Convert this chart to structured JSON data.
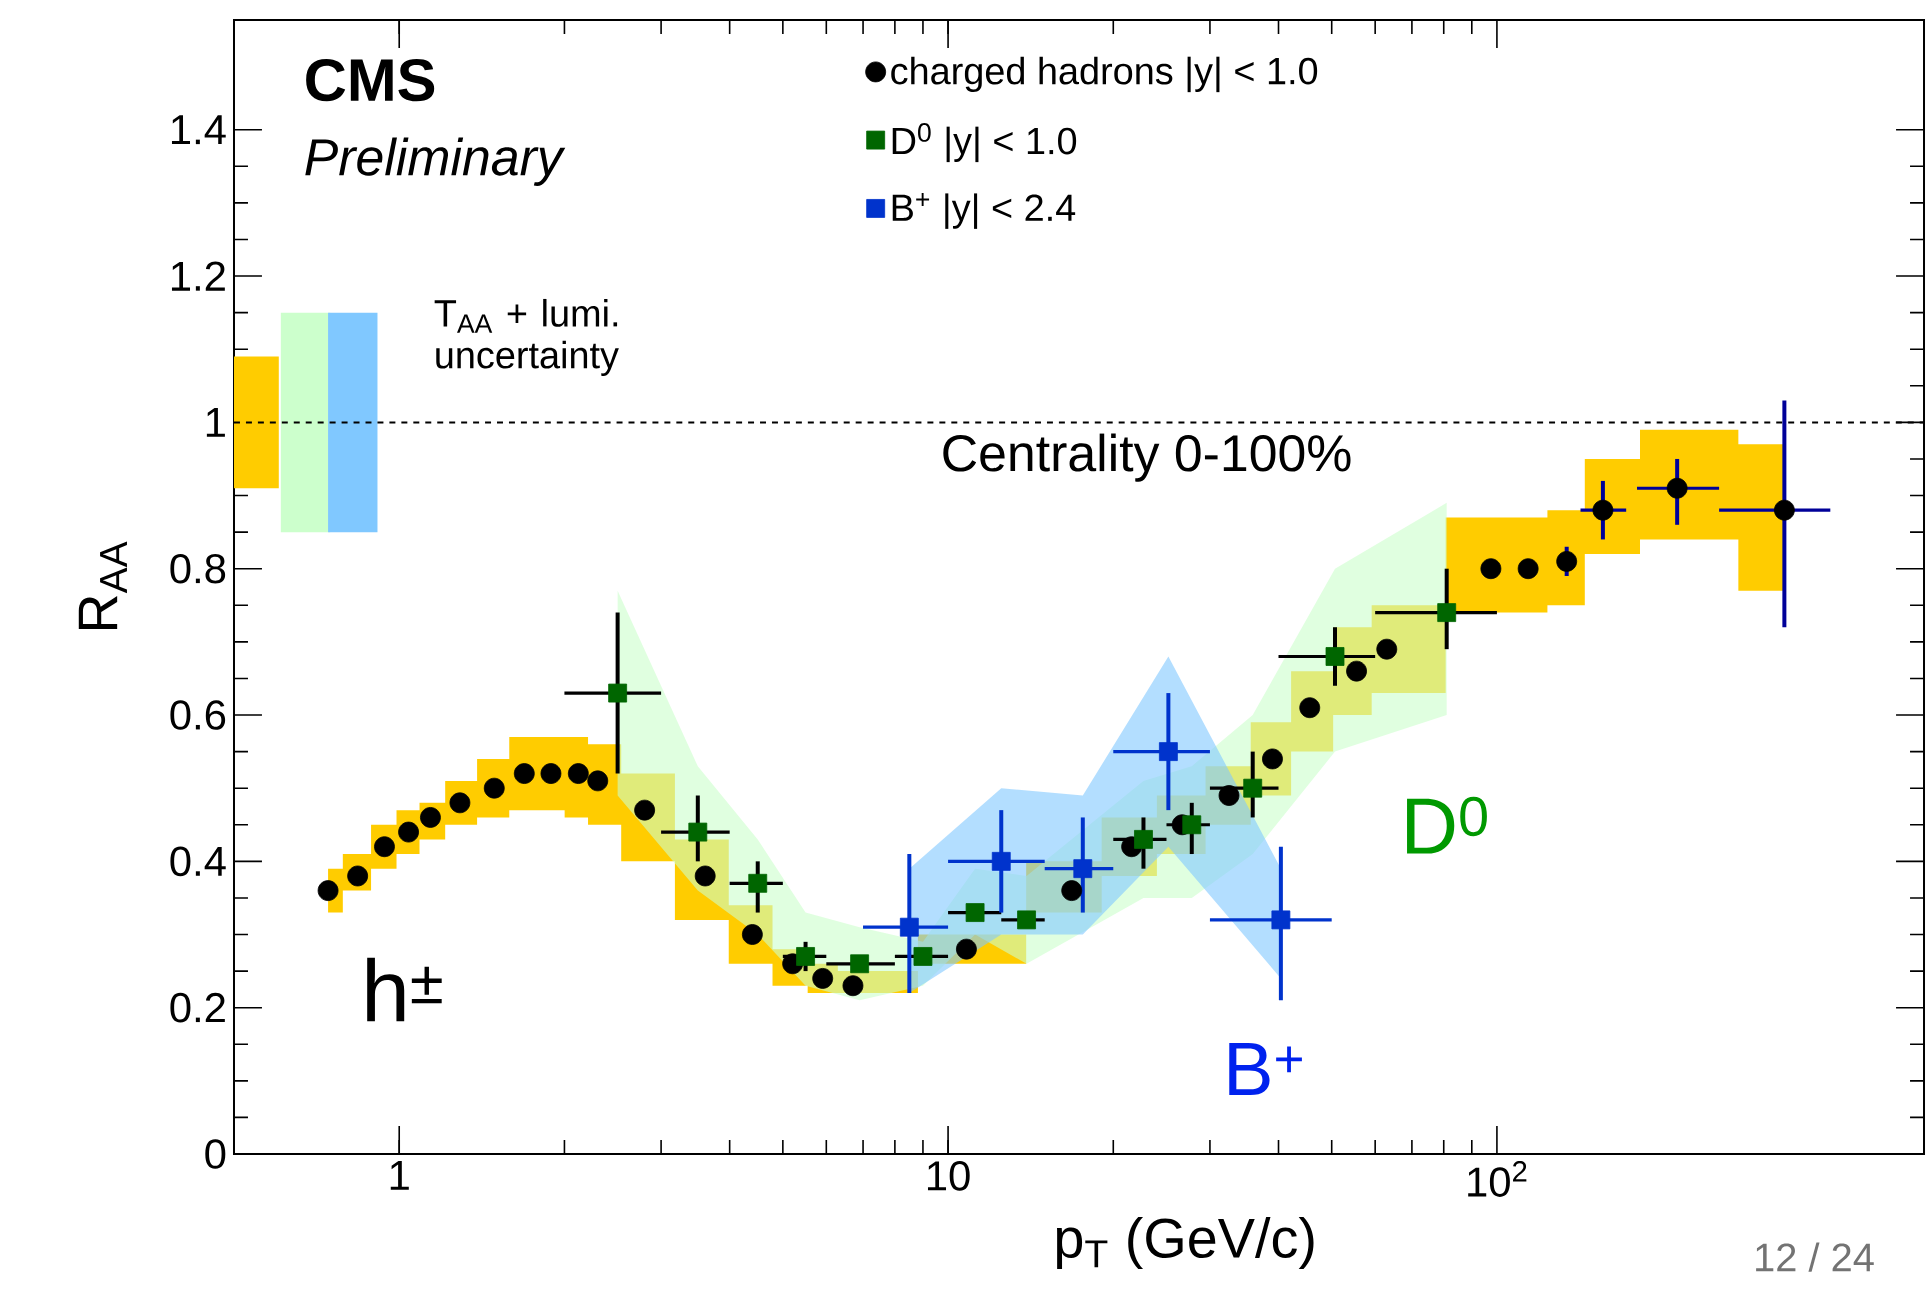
{
  "chart_data": {
    "type": "scatter",
    "xlabel": "p$_{T}$ (GeV/c)",
    "ylabel": "R$_{AA}$",
    "log": "x",
    "xlim": [
      0.5,
      600
    ],
    "ylim": [
      0,
      1.55
    ],
    "xticks": [
      1,
      10,
      {
        "value": 100,
        "label": "10$^{2}$"
      }
    ],
    "yticks": [
      0,
      0.2,
      0.4,
      0.6,
      0.8,
      1,
      1.2,
      1.4
    ],
    "legend": "top right",
    "grid": false,
    "series": [
      {
        "name": "charged hadrons |y| < 1.0",
        "color": "#000000",
        "marker": "circle",
        "x": [
          0.742,
          0.84,
          0.94,
          1.04,
          1.14,
          1.29,
          1.49,
          1.69,
          1.89,
          2.12,
          2.3,
          2.8,
          3.61,
          4.4,
          5.21,
          5.91,
          6.71,
          10.8,
          16.8,
          21.6,
          26.7,
          32.5,
          39,
          45.6,
          55.5,
          63,
          97.5,
          114,
          134,
          156,
          213,
          334
        ],
        "values": [
          0.36,
          0.38,
          0.42,
          0.44,
          0.46,
          0.48,
          0.5,
          0.52,
          0.52,
          0.52,
          0.51,
          0.47,
          0.38,
          0.3,
          0.26,
          0.24,
          0.23,
          0.28,
          0.36,
          0.42,
          0.45,
          0.49,
          0.54,
          0.61,
          0.66,
          0.69,
          0.8,
          0.8,
          0.81,
          0.88,
          0.91,
          0.88
        ],
        "lower": [
          0.33,
          0.36,
          0.39,
          0.41,
          0.43,
          0.45,
          0.46,
          0.47,
          0.47,
          0.46,
          0.45,
          0.4,
          0.32,
          0.26,
          0.23,
          0.22,
          0.22,
          0.26,
          0.33,
          0.38,
          0.41,
          0.45,
          0.49,
          0.55,
          0.6,
          0.63,
          0.74,
          0.74,
          0.75,
          0.82,
          0.84,
          0.77
        ],
        "upper": [
          0.39,
          0.41,
          0.45,
          0.47,
          0.48,
          0.51,
          0.54,
          0.57,
          0.57,
          0.57,
          0.56,
          0.52,
          0.43,
          0.34,
          0.28,
          0.26,
          0.25,
          0.3,
          0.4,
          0.46,
          0.49,
          0.53,
          0.59,
          0.66,
          0.72,
          0.75,
          0.87,
          0.87,
          0.88,
          0.95,
          0.99,
          0.97
        ],
        "errors": [
          null,
          null,
          null,
          null,
          null,
          null,
          null,
          null,
          null,
          null,
          null,
          null,
          null,
          null,
          null,
          null,
          null,
          null,
          null,
          null,
          null,
          null,
          null,
          null,
          null,
          null,
          null,
          null,
          [
            0.79,
            0.83
          ],
          [
            0.84,
            0.92
          ],
          [
            0.86,
            0.95
          ],
          [
            0.72,
            1.03
          ]
        ],
        "xerrors": [
          null,
          null,
          null,
          null,
          null,
          null,
          null,
          null,
          null,
          null,
          null,
          null,
          null,
          null,
          null,
          null,
          null,
          null,
          null,
          null,
          null,
          null,
          null,
          null,
          null,
          null,
          null,
          null,
          null,
          [
            142,
            172
          ],
          [
            180,
            254
          ],
          [
            254,
            405
          ]
        ]
      },
      {
        "name": "D$^{0}$ |y| < 1.0",
        "color": "#006600",
        "marker": "square",
        "x": [
          2.5,
          3.5,
          4.5,
          5.5,
          6.9,
          9.0,
          11.2,
          13.9,
          22.7,
          27.8,
          35.9,
          50.7,
          81
        ],
        "values": [
          0.63,
          0.44,
          0.37,
          0.27,
          0.26,
          0.27,
          0.33,
          0.32,
          0.43,
          0.45,
          0.5,
          0.68,
          0.74
        ],
        "lower": [
          0.49,
          0.36,
          0.3,
          0.23,
          0.21,
          0.23,
          0.3,
          0.26,
          0.35,
          0.35,
          0.41,
          0.55,
          0.6
        ],
        "upper": [
          0.77,
          0.53,
          0.43,
          0.33,
          0.31,
          0.29,
          0.39,
          0.38,
          0.51,
          0.53,
          0.6,
          0.8,
          0.89
        ],
        "errors": [
          [
            0.52,
            0.74
          ],
          [
            0.4,
            0.49
          ],
          [
            0.33,
            0.4
          ],
          [
            0.25,
            0.29
          ],
          null,
          null,
          null,
          null,
          [
            0.39,
            0.46
          ],
          [
            0.41,
            0.48
          ],
          [
            0.46,
            0.55
          ],
          [
            0.64,
            0.72
          ],
          [
            0.69,
            0.8
          ]
        ],
        "xerrors": [
          [
            2,
            3
          ],
          [
            3,
            4
          ],
          [
            4,
            5
          ],
          [
            5,
            6
          ],
          [
            6,
            8
          ],
          [
            8,
            10
          ],
          [
            10,
            12.5
          ],
          [
            12.5,
            15
          ],
          [
            20,
            25
          ],
          [
            25,
            30
          ],
          [
            30,
            40
          ],
          [
            40,
            60
          ],
          [
            60,
            100
          ]
        ]
      },
      {
        "name": "B$^{+}$ |y| < 2.4",
        "color": "#0033cc",
        "marker": "square",
        "x": [
          8.5,
          12.5,
          17.6,
          25.2,
          40.4
        ],
        "values": [
          0.31,
          0.4,
          0.39,
          0.55,
          0.32
        ],
        "lower": [
          0.22,
          0.3,
          0.3,
          0.42,
          0.24
        ],
        "upper": [
          0.39,
          0.5,
          0.49,
          0.68,
          0.39
        ],
        "errors": [
          [
            0.22,
            0.41
          ],
          [
            0.33,
            0.47
          ],
          [
            0.33,
            0.46
          ],
          [
            0.47,
            0.63
          ],
          [
            0.21,
            0.42
          ]
        ],
        "xerrors": [
          [
            7,
            10
          ],
          [
            10,
            15
          ],
          [
            15,
            20
          ],
          [
            20,
            30
          ],
          [
            30,
            50
          ]
        ]
      },
      {
        "type": "bar",
        "color": "#ffcc00",
        "x": [
          0.544
        ],
        "base": [
          0.91
        ],
        "values": [
          0.18
        ]
      },
      {
        "type": "bar",
        "color": "#ccffcc",
        "x": [
          0.675
        ],
        "base": [
          0.85
        ],
        "values": [
          0.3
        ]
      },
      {
        "type": "bar",
        "color": "#80c8ff",
        "x": [
          0.823
        ],
        "base": [
          0.85
        ],
        "values": [
          0.3
        ]
      }
    ],
    "ref_lines": [
      {
        "axis": "y",
        "value": 1,
        "line_style": "dashed",
        "color": "#000000"
      }
    ],
    "annotations": [
      "**CMS**",
      "*Preliminary*",
      "T$_{AA}$ + lumi. uncertainty",
      "Centrality 0-100%",
      "h$^{±}$",
      "D$^{0}$",
      "B$^{+}$",
      "12 / 24"
    ]
  }
}
